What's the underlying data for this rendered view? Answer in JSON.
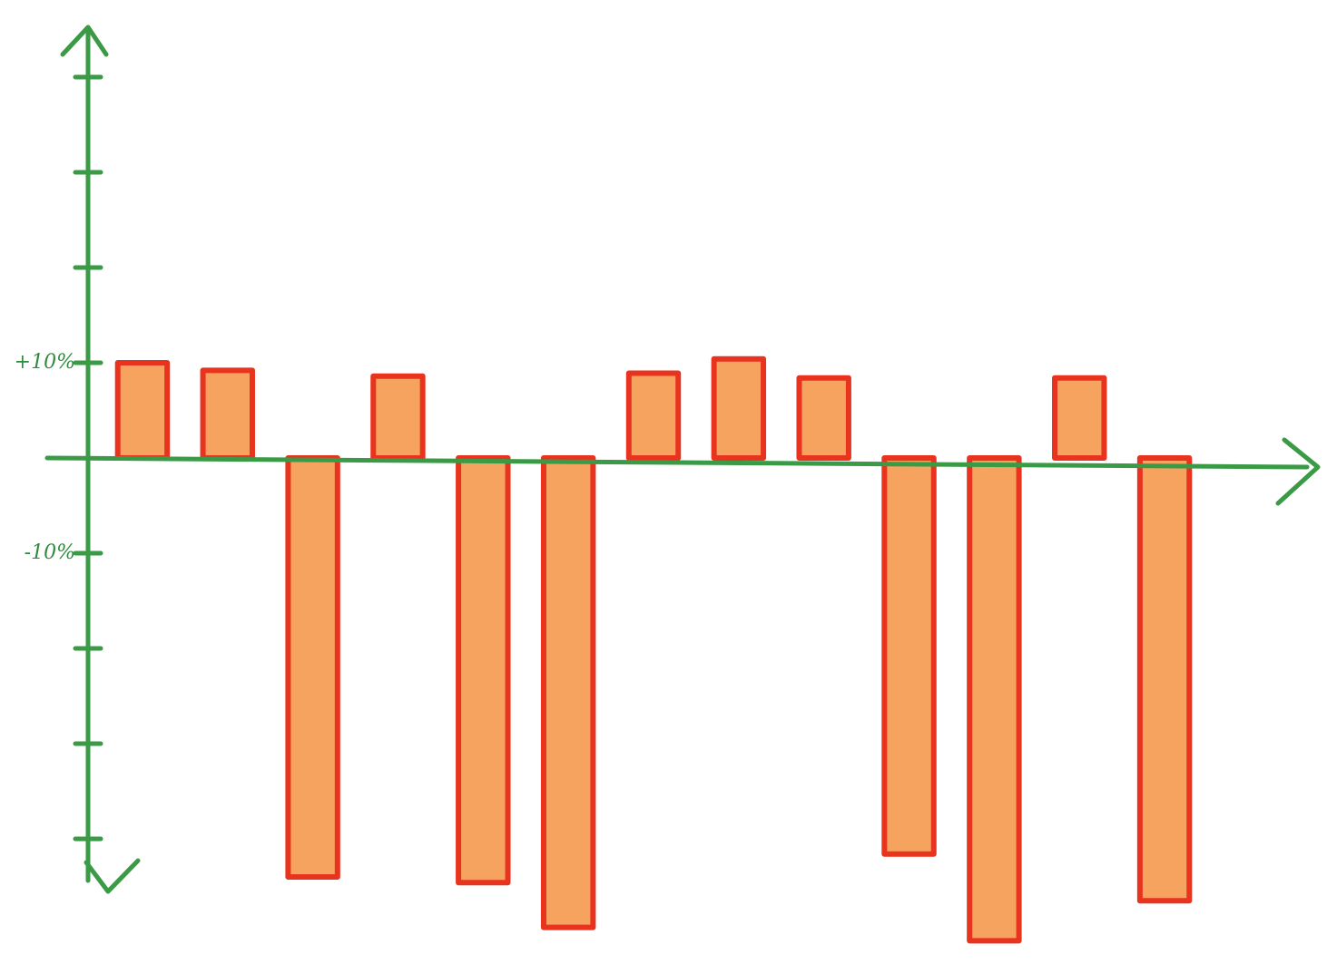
{
  "chart_data": {
    "type": "bar",
    "categories": [
      null,
      null,
      null,
      null,
      null,
      null,
      null,
      null,
      null,
      null,
      null,
      null,
      null
    ],
    "values": [
      10,
      9.2,
      -44,
      8.6,
      -44.6,
      -49.3,
      8.9,
      10.4,
      8.4,
      -41.6,
      -50.7,
      8.4,
      -46.5
    ],
    "color": "#f5a35e",
    "edge_color": "#e8331e",
    "axis_color": "#3a9a45",
    "ylim": [
      -52,
      46
    ],
    "yticks": [
      {
        "value": 40,
        "label": null
      },
      {
        "value": 30,
        "label": null
      },
      {
        "value": 20,
        "label": null
      },
      {
        "value": 10,
        "label": "+10%"
      },
      {
        "value": -10,
        "label": "-10%"
      },
      {
        "value": -20,
        "label": null
      },
      {
        "value": -30,
        "label": null
      },
      {
        "value": -40,
        "label": null
      }
    ],
    "grid": false
  }
}
